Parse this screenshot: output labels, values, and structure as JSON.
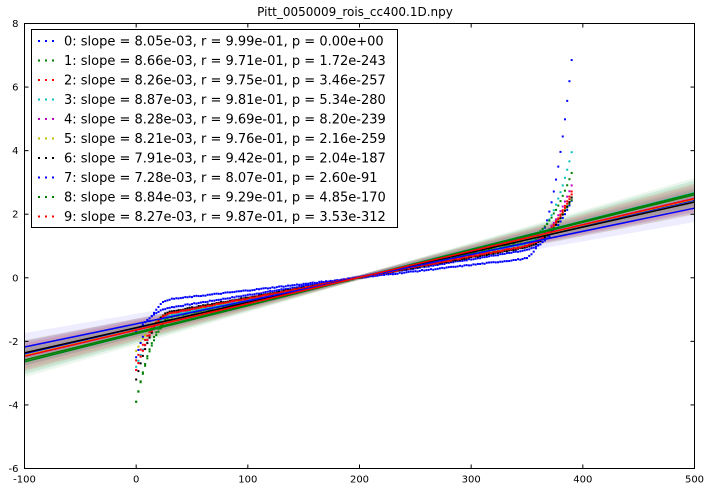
{
  "chart_data": {
    "type": "scatter",
    "title": "Pitt_0050009_rois_cc400.1D.npy",
    "xlabel": "",
    "ylabel": "",
    "xlim": [
      -100,
      500
    ],
    "ylim": [
      -6,
      8
    ],
    "xticks": [
      -100,
      0,
      100,
      200,
      300,
      400,
      500
    ],
    "yticks": [
      -6,
      -4,
      -2,
      0,
      2,
      4,
      6,
      8
    ],
    "grid": false,
    "legend_position": "top-left",
    "series": [
      {
        "name": "0: slope = 8.05e-03, r = 9.99e-01, p = 0.00e+00",
        "color": "#0000ff",
        "slope": 0.00805,
        "y_at_0": -1.58,
        "y_start": -1.7,
        "y_end": 2.5,
        "flat": 0.3
      },
      {
        "name": "1: slope = 8.66e-03, r = 9.71e-01, p = 1.72e-243",
        "color": "#008000",
        "slope": 0.00866,
        "y_at_0": -1.72,
        "y_start": -3.9,
        "y_end": 2.5,
        "flat": 0.15
      },
      {
        "name": "2: slope = 8.26e-03, r = 9.75e-01, p = 3.46e-257",
        "color": "#ff0000",
        "slope": 0.00826,
        "y_at_0": -1.64,
        "y_start": -2.6,
        "y_end": 2.8,
        "flat": 0.2
      },
      {
        "name": "3: slope = 8.87e-03, r = 9.81e-01, p = 5.34e-280",
        "color": "#00bfbf",
        "slope": 0.00887,
        "y_at_0": -1.76,
        "y_start": -2.8,
        "y_end": 4.1,
        "flat": 0.2
      },
      {
        "name": "4: slope = 8.28e-03, r = 9.69e-01, p = 8.20e-239",
        "color": "#bf00bf",
        "slope": 0.00828,
        "y_at_0": -1.64,
        "y_start": -2.9,
        "y_end": 3.0,
        "flat": 0.2
      },
      {
        "name": "5: slope = 8.21e-03, r = 9.76e-01, p = 2.16e-259",
        "color": "#bfbf00",
        "slope": 0.00821,
        "y_at_0": -1.63,
        "y_start": -2.3,
        "y_end": 2.6,
        "flat": 0.2
      },
      {
        "name": "6: slope = 7.91e-03, r = 9.42e-01, p = 2.04e-187",
        "color": "#000000",
        "slope": 0.00791,
        "y_at_0": -1.57,
        "y_start": -3.2,
        "y_end": 2.6,
        "flat": 0.2
      },
      {
        "name": "7: slope = 7.28e-03, r = 8.07e-01, p = 2.60e-91",
        "color": "#0000ff",
        "slope": 0.00728,
        "y_at_0": -1.45,
        "y_start": -2.5,
        "y_end": 7.2,
        "flat": 0.45
      },
      {
        "name": "8: slope = 8.84e-03, r = 9.29e-01, p = 4.85e-170",
        "color": "#008000",
        "slope": 0.00884,
        "y_at_0": -1.76,
        "y_start": -3.9,
        "y_end": 3.4,
        "flat": 0.1
      },
      {
        "name": "9: slope = 8.27e-03, r = 9.87e-01, p = 3.53e-312",
        "color": "#ff0000",
        "slope": 0.00827,
        "y_at_0": -1.64,
        "y_start": -2.9,
        "y_end": 2.7,
        "flat": 0.2
      }
    ]
  }
}
